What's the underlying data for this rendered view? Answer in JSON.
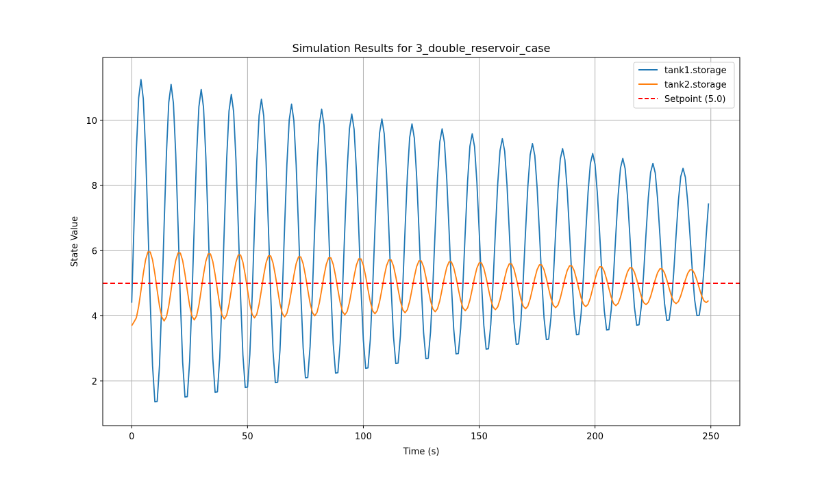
{
  "chart_data": {
    "type": "line",
    "title": "Simulation Results for 3_double_reservoir_case",
    "xlabel": "Time (s)",
    "ylabel": "State Value",
    "xlim": [
      -12.5,
      262.5
    ],
    "ylim": [
      0.63,
      11.93
    ],
    "xticks": [
      0,
      50,
      100,
      150,
      200,
      250
    ],
    "yticks": [
      2,
      4,
      6,
      8,
      10
    ],
    "grid": true,
    "legend_position": "top-right",
    "x": {
      "start": 0,
      "end": 249,
      "step": 1
    },
    "series": [
      {
        "name": "tank1.storage",
        "color": "#1f77b4",
        "model": {
          "offset": 6.2,
          "amp_start": 5.1,
          "amp_end": 2.2,
          "period": 13.0,
          "phase_peak_x": 4.0,
          "start_value": 4.4
        }
      },
      {
        "name": "tank2.storage",
        "color": "#ff7f0e",
        "model": {
          "offset": 4.91,
          "amp_start": 1.1,
          "amp_end": 0.5,
          "period": 13.0,
          "phase_peak_x": 7.5,
          "start_value": 3.7
        }
      }
    ],
    "hlines": [
      {
        "name": "Setpoint (5.0)",
        "value": 5.0,
        "color": "#ff0000",
        "style": "dashed"
      }
    ]
  }
}
